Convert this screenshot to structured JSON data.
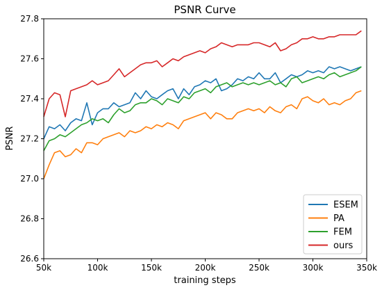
{
  "chart_data": {
    "type": "line",
    "title": "PSNR Curve",
    "xlabel": "training steps",
    "ylabel": "PSNR",
    "xlim": [
      50000,
      350000
    ],
    "ylim": [
      26.6,
      27.8
    ],
    "xticks": [
      50000,
      100000,
      150000,
      200000,
      250000,
      300000,
      350000
    ],
    "xtick_labels": [
      "50k",
      "100k",
      "150k",
      "200k",
      "250k",
      "300k",
      "350k"
    ],
    "yticks": [
      26.6,
      26.8,
      27.0,
      27.2,
      27.4,
      27.6,
      27.8
    ],
    "ytick_labels": [
      "26.6",
      "26.8",
      "27.0",
      "27.2",
      "27.4",
      "27.6",
      "27.8"
    ],
    "grid": false,
    "legend_position": "bottom-right",
    "x": [
      50000,
      55000,
      60000,
      65000,
      70000,
      75000,
      80000,
      85000,
      90000,
      95000,
      100000,
      105000,
      110000,
      115000,
      120000,
      125000,
      130000,
      135000,
      140000,
      145000,
      150000,
      155000,
      160000,
      165000,
      170000,
      175000,
      180000,
      185000,
      190000,
      195000,
      200000,
      205000,
      210000,
      215000,
      220000,
      225000,
      230000,
      235000,
      240000,
      245000,
      250000,
      255000,
      260000,
      265000,
      270000,
      275000,
      280000,
      285000,
      290000,
      295000,
      300000,
      305000,
      310000,
      315000,
      320000,
      325000,
      330000,
      335000,
      340000,
      345000
    ],
    "series": [
      {
        "name": "ESEM",
        "color": "#1f77b4",
        "values": [
          27.2,
          27.26,
          27.25,
          27.27,
          27.24,
          27.28,
          27.3,
          27.29,
          27.38,
          27.27,
          27.33,
          27.35,
          27.35,
          27.38,
          27.36,
          27.37,
          27.38,
          27.43,
          27.4,
          27.44,
          27.41,
          27.4,
          27.42,
          27.44,
          27.45,
          27.4,
          27.45,
          27.42,
          27.46,
          27.47,
          27.49,
          27.48,
          27.5,
          27.44,
          27.45,
          27.47,
          27.5,
          27.49,
          27.51,
          27.5,
          27.53,
          27.5,
          27.5,
          27.53,
          27.48,
          27.5,
          27.52,
          27.51,
          27.52,
          27.54,
          27.53,
          27.54,
          27.53,
          27.56,
          27.55,
          27.56,
          27.55,
          27.54,
          27.55,
          27.56
        ]
      },
      {
        "name": "PA",
        "color": "#ff7f0e",
        "values": [
          27.0,
          27.07,
          27.13,
          27.14,
          27.11,
          27.12,
          27.15,
          27.13,
          27.18,
          27.18,
          27.17,
          27.2,
          27.21,
          27.22,
          27.23,
          27.21,
          27.24,
          27.23,
          27.24,
          27.26,
          27.25,
          27.27,
          27.26,
          27.28,
          27.27,
          27.25,
          27.29,
          27.3,
          27.31,
          27.32,
          27.33,
          27.3,
          27.33,
          27.32,
          27.3,
          27.3,
          27.33,
          27.34,
          27.35,
          27.34,
          27.35,
          27.33,
          27.36,
          27.34,
          27.33,
          27.36,
          27.37,
          27.35,
          27.4,
          27.41,
          27.39,
          27.38,
          27.4,
          27.37,
          27.38,
          27.37,
          27.39,
          27.4,
          27.43,
          27.44
        ]
      },
      {
        "name": "FEM",
        "color": "#2ca02c",
        "values": [
          27.14,
          27.19,
          27.2,
          27.22,
          27.21,
          27.23,
          27.25,
          27.27,
          27.28,
          27.3,
          27.29,
          27.3,
          27.28,
          27.32,
          27.35,
          27.33,
          27.34,
          27.37,
          27.38,
          27.38,
          27.4,
          27.39,
          27.37,
          27.4,
          27.39,
          27.38,
          27.41,
          27.4,
          27.43,
          27.44,
          27.45,
          27.43,
          27.46,
          27.47,
          27.48,
          27.46,
          27.47,
          27.48,
          27.47,
          27.48,
          27.47,
          27.48,
          27.49,
          27.47,
          27.48,
          27.46,
          27.5,
          27.51,
          27.48,
          27.49,
          27.5,
          27.51,
          27.5,
          27.52,
          27.53,
          27.51,
          27.52,
          27.53,
          27.54,
          27.56
        ]
      },
      {
        "name": "ours",
        "color": "#d62728",
        "values": [
          27.31,
          27.4,
          27.43,
          27.42,
          27.31,
          27.44,
          27.45,
          27.46,
          27.47,
          27.49,
          27.47,
          27.48,
          27.49,
          27.52,
          27.55,
          27.51,
          27.53,
          27.55,
          27.57,
          27.58,
          27.58,
          27.59,
          27.56,
          27.58,
          27.6,
          27.59,
          27.61,
          27.62,
          27.63,
          27.64,
          27.63,
          27.65,
          27.66,
          27.68,
          27.67,
          27.66,
          27.67,
          27.67,
          27.67,
          27.68,
          27.68,
          27.67,
          27.66,
          27.68,
          27.64,
          27.65,
          27.67,
          27.68,
          27.7,
          27.7,
          27.71,
          27.7,
          27.7,
          27.71,
          27.71,
          27.72,
          27.72,
          27.72,
          27.72,
          27.74
        ]
      }
    ]
  }
}
